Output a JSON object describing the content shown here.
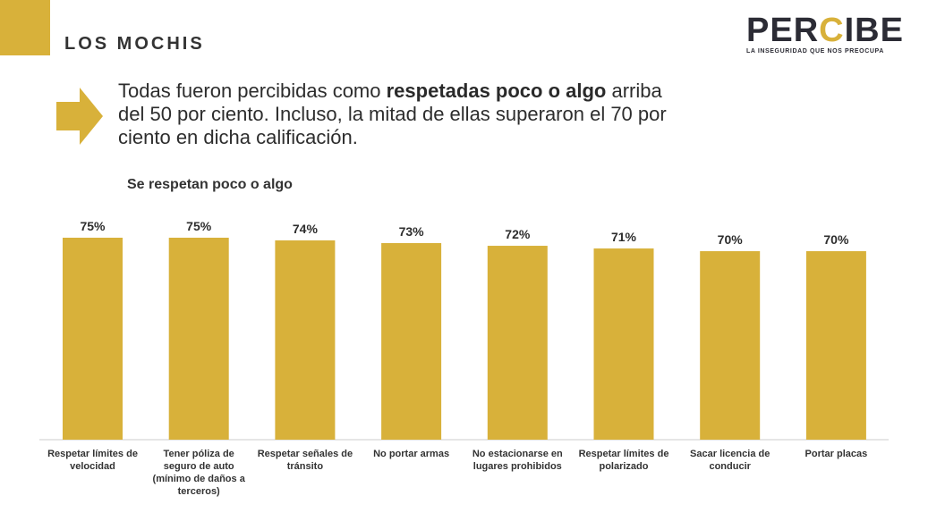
{
  "header": {
    "section_title": "LOS MOCHIS",
    "logo": {
      "word_part1": "PER",
      "word_c": "C",
      "word_part2": "IBE",
      "tagline": "LA INSEGURIDAD QUE NOS PREOCUPA"
    }
  },
  "intro": {
    "text_before": "Todas fueron percibidas como ",
    "text_bold": "respetadas poco o algo",
    "text_after": " arriba del 50 por ciento. Incluso, la mitad de ellas superaron el 70 por ciento en dicha calificación."
  },
  "colors": {
    "accent": "#d8b13a",
    "text": "#2d2d2d"
  },
  "chart_data": {
    "type": "bar",
    "title": "Se respetan poco o algo",
    "categories": [
      "Respetar límites de velocidad",
      "Tener póliza de seguro de auto (mínimo de daños a terceros)",
      "Respetar señales de tránsito",
      "No portar armas",
      "No estacionarse en lugares prohibidos",
      "Respetar límites de polarizado",
      "Sacar licencia de conducir",
      "Portar placas"
    ],
    "values": [
      75,
      75,
      74,
      73,
      72,
      71,
      70,
      70
    ],
    "value_labels": [
      "75%",
      "75%",
      "74%",
      "73%",
      "72%",
      "71%",
      "70%",
      "70%"
    ],
    "unit": "%",
    "xlabel": "",
    "ylabel": "",
    "grid": false
  }
}
